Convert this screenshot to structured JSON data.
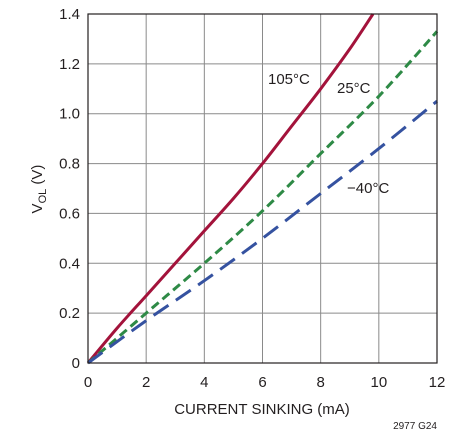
{
  "chart_data": {
    "type": "line",
    "xlabel": "CURRENT SINKING (mA)",
    "ylabel": {
      "main": "V",
      "sub": "OL",
      "unit": " (V)"
    },
    "xlim": [
      0,
      12
    ],
    "ylim": [
      0,
      1.4
    ],
    "x_ticks": [
      "0",
      "2",
      "4",
      "6",
      "8",
      "10",
      "12"
    ],
    "y_ticks": [
      "0",
      "0.2",
      "0.4",
      "0.6",
      "0.8",
      "1.0",
      "1.2",
      "1.4"
    ],
    "grid": true,
    "figure_code": "2977 G24",
    "series": [
      {
        "label": "105°C",
        "color": "#a3133b",
        "style": "solid",
        "x": [
          0,
          1,
          2,
          3,
          4,
          5,
          6,
          7,
          8,
          9,
          9.8
        ],
        "y": [
          0,
          0.14,
          0.27,
          0.4,
          0.53,
          0.66,
          0.8,
          0.95,
          1.1,
          1.26,
          1.4
        ]
      },
      {
        "label": "25°C",
        "color": "#2e8a46",
        "style": "dashed",
        "x": [
          0,
          2,
          4,
          6,
          8,
          10,
          12
        ],
        "y": [
          0,
          0.2,
          0.4,
          0.61,
          0.84,
          1.07,
          1.33
        ]
      },
      {
        "label": "−40°C",
        "color": "#3552a0",
        "style": "longdash",
        "x": [
          0,
          2,
          4,
          6,
          8,
          10,
          12
        ],
        "y": [
          0,
          0.17,
          0.33,
          0.5,
          0.68,
          0.86,
          1.05
        ]
      }
    ]
  }
}
